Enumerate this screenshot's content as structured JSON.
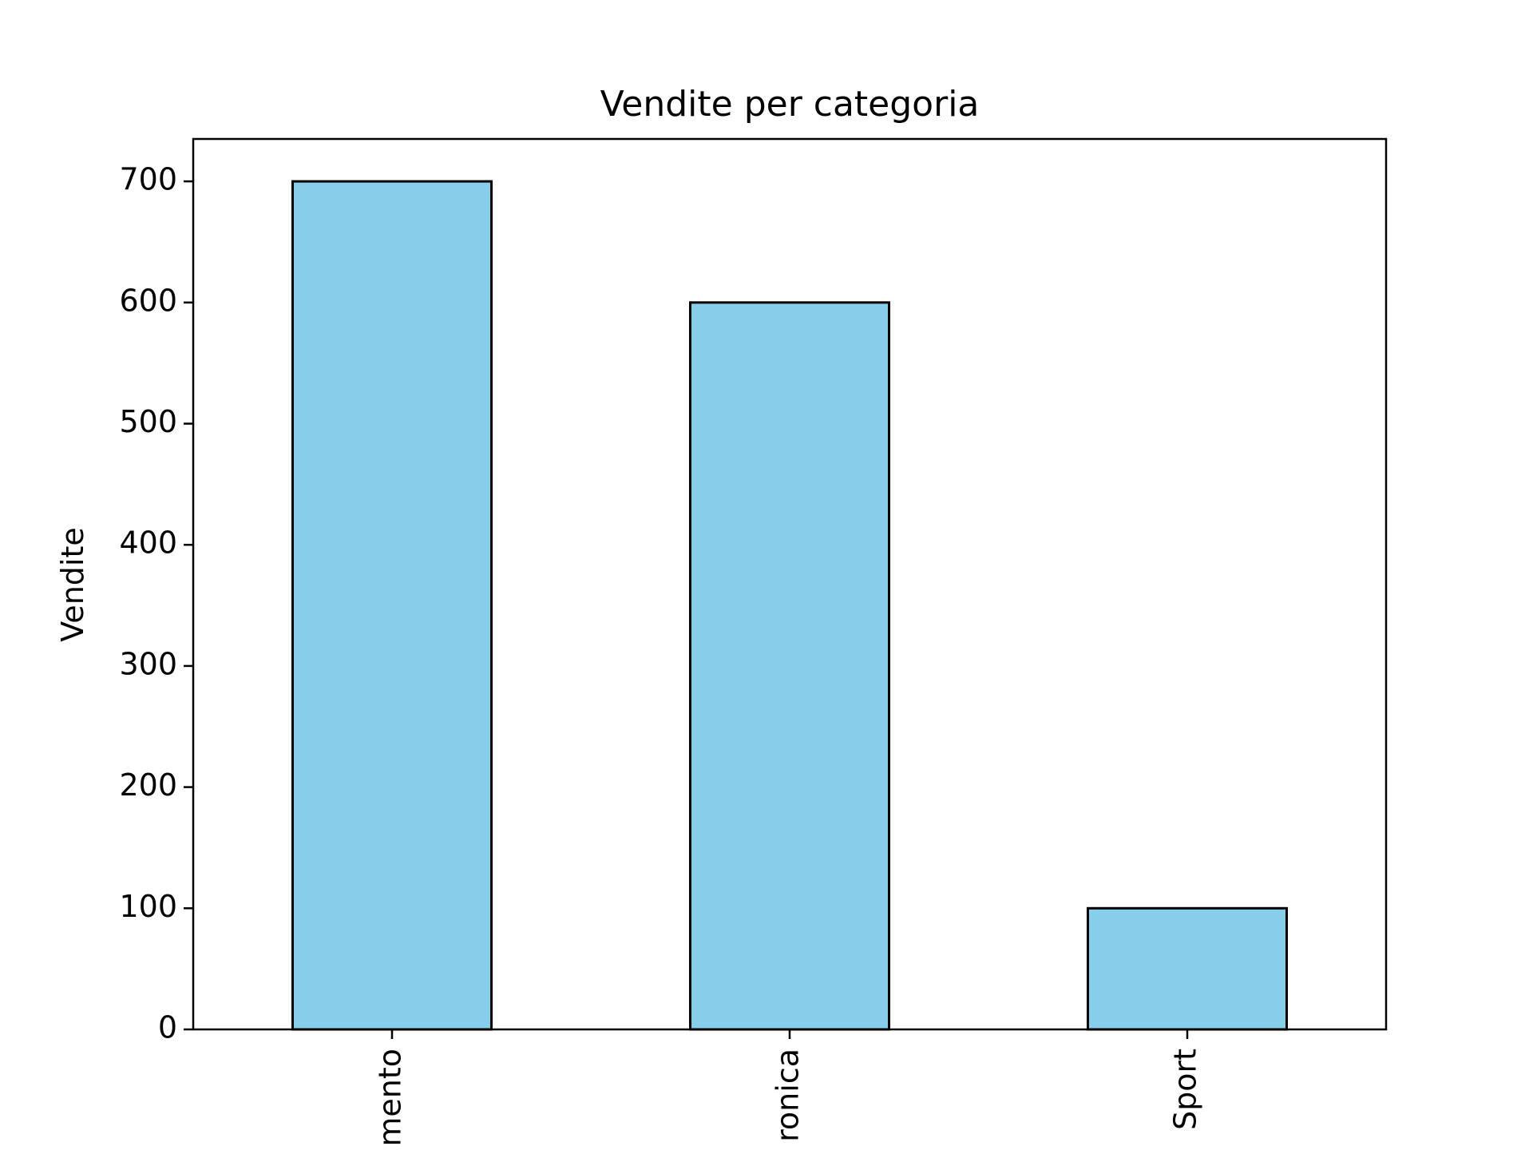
{
  "chart_data": {
    "type": "bar",
    "title": "Vendite per categoria",
    "xlabel": "",
    "ylabel": "Vendite",
    "categories": [
      "mento",
      "ronica",
      "Sport"
    ],
    "values": [
      700,
      600,
      100
    ],
    "ylim": [
      0,
      735
    ],
    "yticks": [
      0,
      100,
      200,
      300,
      400,
      500,
      600,
      700
    ],
    "grid": false,
    "bar_color": "#87CEEB",
    "bar_edge_color": "#000000"
  }
}
